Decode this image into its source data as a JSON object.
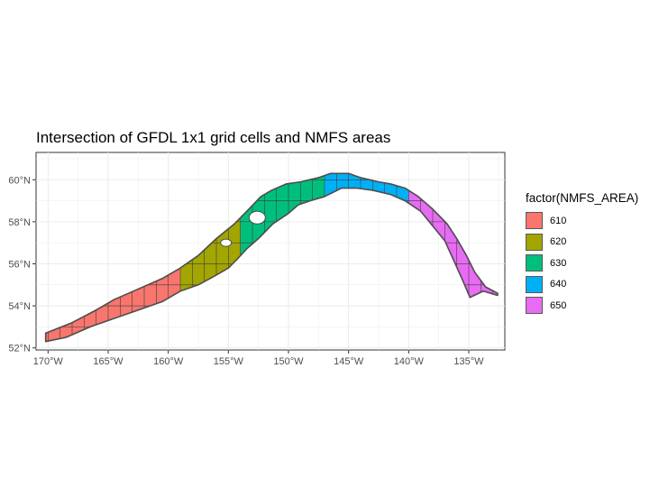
{
  "chart_data": {
    "type": "map",
    "title": "Intersection of GFDL 1x1 grid cells and NMFS areas",
    "x_ticks": [
      "170°W",
      "165°W",
      "160°W",
      "155°W",
      "150°W",
      "145°W",
      "140°W",
      "135°W"
    ],
    "y_ticks": [
      "52°N",
      "54°N",
      "56°N",
      "58°N",
      "60°N"
    ],
    "xlim": [
      -171,
      -132
    ],
    "ylim": [
      51.9,
      61.3
    ],
    "grid": true,
    "legend_position": "right",
    "legend": {
      "title": "factor(NMFS_AREA)",
      "entries": [
        {
          "label": "610",
          "color": "#F8766D"
        },
        {
          "label": "620",
          "color": "#A3A500"
        },
        {
          "label": "630",
          "color": "#00BF7D"
        },
        {
          "label": "640",
          "color": "#00B0F6"
        },
        {
          "label": "650",
          "color": "#E76BF3"
        }
      ]
    },
    "regions": [
      {
        "area": "610",
        "color": "#F8766D",
        "lon_range": [
          -170.2,
          -159
        ]
      },
      {
        "area": "620",
        "color": "#A3A500",
        "lon_range": [
          -159,
          -154
        ]
      },
      {
        "area": "630",
        "color": "#00BF7D",
        "lon_range": [
          -154,
          -147
        ]
      },
      {
        "area": "640",
        "color": "#00B0F6",
        "lon_range": [
          -147,
          -140
        ]
      },
      {
        "area": "650",
        "color": "#E76BF3",
        "lon_range": [
          -140,
          -132.5
        ]
      }
    ]
  }
}
